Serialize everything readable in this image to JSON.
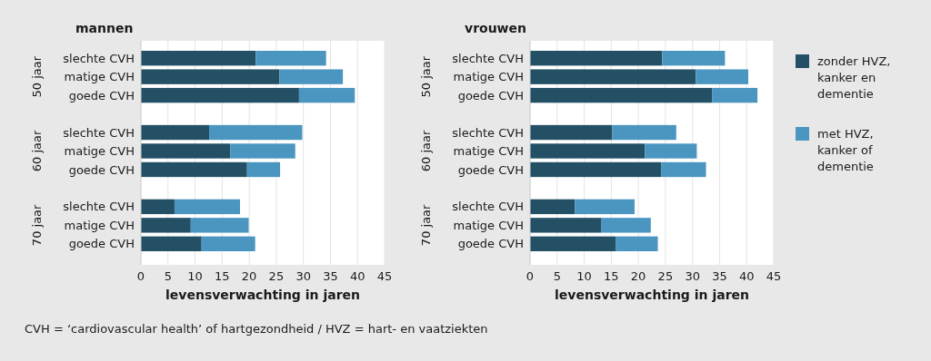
{
  "chart_data": [
    {
      "type": "bar",
      "orientation": "horizontal",
      "stacked": true,
      "title": "mannen",
      "xlabel": "levensverwachting in jaren",
      "categories": [
        "slechte CVH",
        "matige CVH",
        "goede CVH",
        null,
        "slechte CVH",
        "matige CVH",
        "goede CVH",
        null,
        "slechte CVH",
        "matige CVH",
        "goede CVH"
      ],
      "series": [
        {
          "color": "#245066",
          "values": [
            21.2,
            25.6,
            29.2,
            null,
            12.6,
            16.5,
            19.6,
            null,
            6.2,
            9.2,
            11.2
          ]
        },
        {
          "color": "#4a96c0",
          "values": [
            13.0,
            11.7,
            10.3,
            null,
            17.2,
            12.0,
            6.1,
            null,
            12.1,
            10.7,
            9.9
          ]
        }
      ],
      "xlim": [
        0,
        45
      ],
      "xticks": [
        0,
        5,
        10,
        15,
        20,
        25,
        30,
        35,
        40,
        45
      ],
      "grid": "x",
      "legend": false,
      "annotations": [
        "50 jaar",
        "60 jaar",
        "70 jaar",
        "CVH = ‘cardiovascular health’ of hartgezondheid  /  HVZ = hart- en vaatziekten"
      ]
    },
    {
      "type": "bar",
      "orientation": "horizontal",
      "stacked": true,
      "title": "vrouwen",
      "xlabel": "levensverwachting in jaren",
      "categories": [
        "slechte CVH",
        "matige CVH",
        "goede CVH",
        null,
        "slechte CVH",
        "matige CVH",
        "goede CVH",
        null,
        "slechte CVH",
        "matige CVH",
        "goede CVH"
      ],
      "series": [
        {
          "name": "zonder HVZ, kanker en dementie",
          "color": "#245066",
          "values": [
            24.4,
            30.6,
            33.6,
            null,
            15.2,
            21.2,
            24.2,
            null,
            8.3,
            13.2,
            15.8
          ]
        },
        {
          "name": "met HVZ, kanker of dementie",
          "color": "#4a96c0",
          "values": [
            11.6,
            9.7,
            8.4,
            null,
            11.8,
            9.6,
            8.3,
            null,
            11.0,
            9.1,
            7.8
          ]
        }
      ],
      "xlim": [
        0,
        45
      ],
      "xticks": [
        0,
        5,
        10,
        15,
        20,
        25,
        30,
        35,
        40,
        45
      ],
      "grid": "x",
      "legend": "right",
      "annotations": [
        "50 jaar",
        "60 jaar",
        "70 jaar"
      ]
    }
  ]
}
